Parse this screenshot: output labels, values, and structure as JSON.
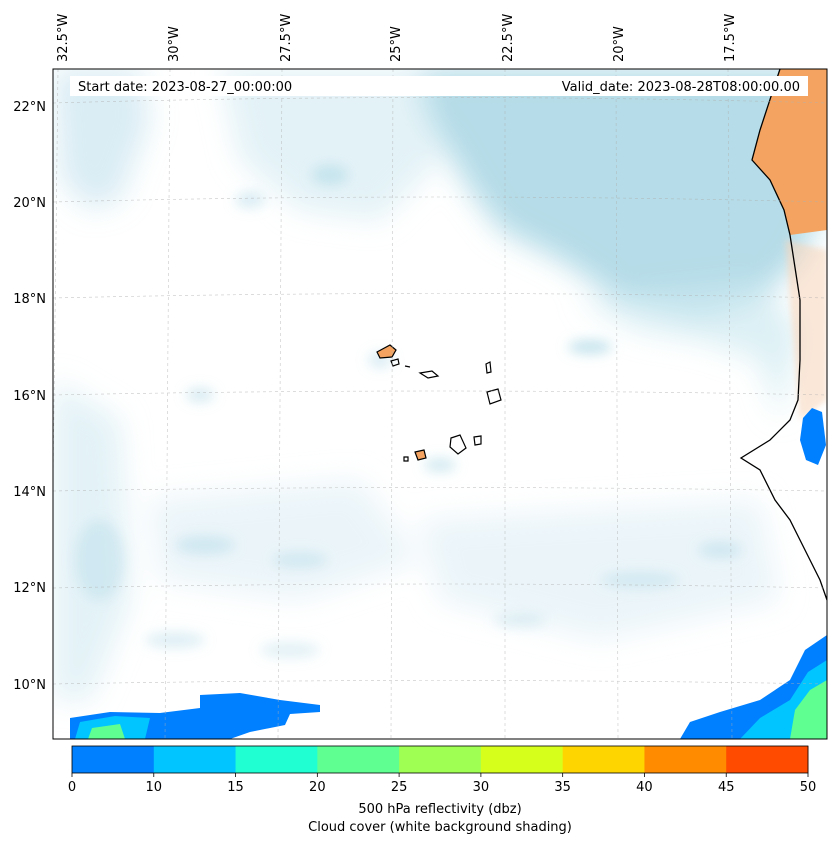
{
  "map": {
    "start_label": "Start date: 2023-08-27_00:00:00",
    "valid_label": "Valid_date: 2023-08-28T08:00:00.00",
    "lon_labels": [
      "32.5°W",
      "30°W",
      "27.5°W",
      "25°W",
      "22.5°W",
      "20°W",
      "17.5°W"
    ],
    "lat_labels": [
      "22°N",
      "20°N",
      "18°N",
      "16°N",
      "14°N",
      "12°N",
      "10°N"
    ],
    "land_color": "#f4a460",
    "coast_color": "#000000",
    "cloud_color": "#add8e6"
  },
  "colorbar": {
    "label_line1": "500 hPa reflectivity (dbz)",
    "label_line2": "Cloud cover (white background shading)",
    "ticks": [
      "0",
      "10",
      "15",
      "20",
      "25",
      "30",
      "35",
      "40",
      "45",
      "50"
    ],
    "bins": [
      {
        "range": "0-10",
        "color": "#007fff"
      },
      {
        "range": "10-15",
        "color": "#00c5ff"
      },
      {
        "range": "15-20",
        "color": "#1fffd2"
      },
      {
        "range": "20-25",
        "color": "#5fff92"
      },
      {
        "range": "25-30",
        "color": "#9fff52"
      },
      {
        "range": "30-35",
        "color": "#d6ff1c"
      },
      {
        "range": "35-40",
        "color": "#ffd500"
      },
      {
        "range": "40-45",
        "color": "#ff8c00"
      },
      {
        "range": "45-50",
        "color": "#ff4b00"
      }
    ]
  }
}
